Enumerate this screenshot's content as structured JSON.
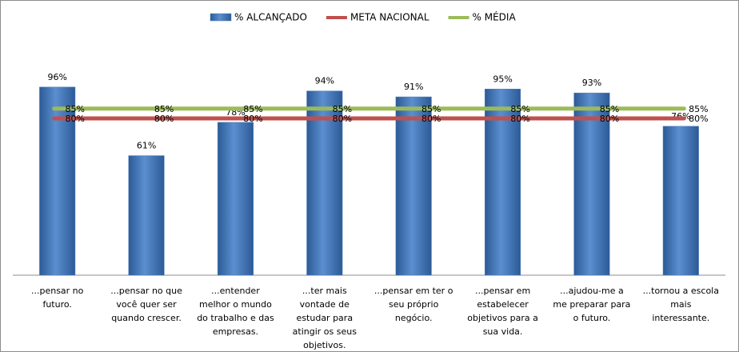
{
  "chart_data": {
    "type": "bar",
    "categories": [
      "...pensar no futuro.",
      "...pensar no que você quer ser quando crescer.",
      "...entender melhor o mundo do trabalho e das empresas.",
      "...ter mais vontade de estudar para atingir os seus objetivos.",
      "...pensar em ter o seu próprio negócio.",
      "...pensar em estabelecer objetivos para a sua vida.",
      "...ajudou-me a me preparar para o futuro.",
      "...tornou a escola mais interessante."
    ],
    "series": [
      {
        "name": "% ALCANÇADO",
        "type": "bar",
        "color": "#4f81bd",
        "values": [
          96,
          61,
          78,
          94,
          91,
          95,
          93,
          76
        ],
        "value_labels": [
          "96%",
          "61%",
          "78%",
          "94%",
          "91%",
          "95%",
          "93%",
          "76%"
        ]
      },
      {
        "name": "META NACIONAL",
        "type": "line",
        "color": "#c0504d",
        "values": [
          80,
          80,
          80,
          80,
          80,
          80,
          80,
          80
        ],
        "value_labels": [
          "80%",
          "80%",
          "80%",
          "80%",
          "80%",
          "80%",
          "80%",
          "80%"
        ]
      },
      {
        "name": "% MÉDIA",
        "type": "line",
        "color": "#9bbb59",
        "values": [
          85,
          85,
          85,
          85,
          85,
          85,
          85,
          85
        ],
        "value_labels": [
          "85%",
          "85%",
          "85%",
          "85%",
          "85%",
          "85%",
          "85%",
          "85%"
        ]
      }
    ],
    "ylim": [
      0,
      100
    ],
    "legend": "top"
  }
}
